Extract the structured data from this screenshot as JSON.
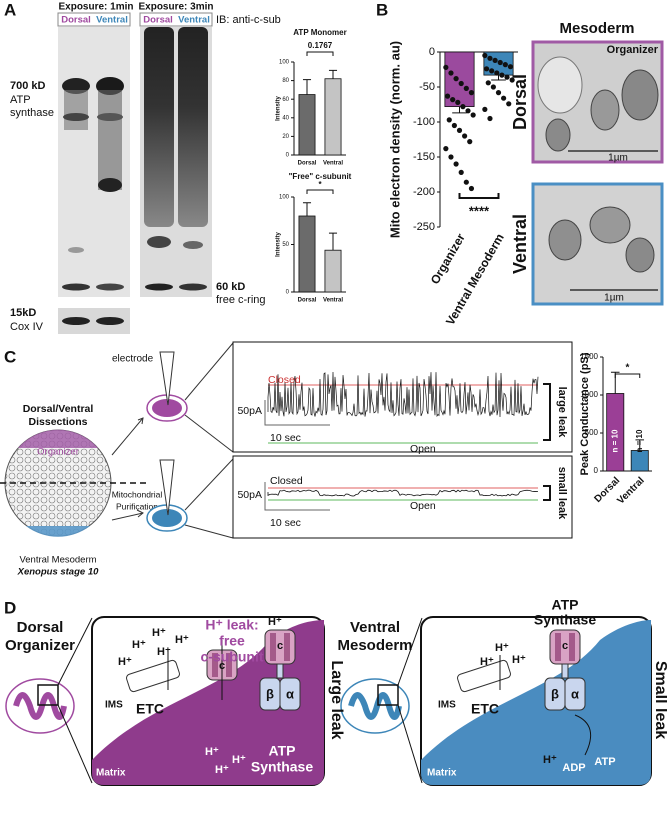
{
  "figure": {
    "panel_a": {
      "letter": "A",
      "exposure_1": "Exposure: 1min",
      "exposure_3": "Exposure: 3min",
      "lane_dorsal": "Dorsal",
      "lane_ventral": "Ventral",
      "ib": "IB: anti-c-sub",
      "mw_700": "700 kD",
      "atp_1": "ATP",
      "atp_2": "synthase",
      "mw_60": "60 kD",
      "free_ring": "free c-ring",
      "mw_15": "15kD",
      "cox": "Cox IV"
    },
    "panel_b": {
      "letter": "B",
      "mesoderm": "Mesoderm",
      "organizer": "Organizer",
      "dorsal": "Dorsal",
      "ventral": "Ventral",
      "scale": "1µm"
    },
    "panel_c": {
      "letter": "C",
      "dissections_1": "Dorsal/Ventral",
      "dissections_2": "Dissections",
      "organizer": "Organizer",
      "ventral": "Ventral Mesoderm",
      "stage": "Xenopus stage 10",
      "purification_1": "Mitochondrial",
      "purification_2": "Purification",
      "electrode": "electrode",
      "closed": "Closed",
      "open": "Open",
      "large": "large leak",
      "small": "small leak",
      "current": "50pA",
      "time": "10 sec"
    },
    "panel_d": {
      "letter": "D",
      "dorsal_1": "Dorsal",
      "dorsal_2": "Organizer",
      "leak_1": "H⁺ leak:",
      "leak_2": "free",
      "leak_3": "c-subunit",
      "large": "Large leak",
      "ims": "IMS",
      "matrix": "Matrix",
      "etc": "ETC",
      "synthase_1": "ATP",
      "synthase_2": "Synthase",
      "c": "c",
      "beta": "β",
      "alpha": "α",
      "ventral_1": "Ventral",
      "ventral_2": "Mesoderm",
      "small": "Small leak",
      "adp": "ADP",
      "atp": "ATP",
      "proton": "H⁺"
    }
  },
  "chart_data": [
    {
      "type": "bar",
      "title": "ATP Monomer",
      "ylabel": "Intensity",
      "categories": [
        "Dorsal",
        "Ventral"
      ],
      "values": [
        65,
        82
      ],
      "errors": [
        16,
        9
      ],
      "colors": [
        "#6b6b6b",
        "#c4c4c4"
      ],
      "ylim": [
        0,
        100
      ],
      "yticks": [
        0,
        20,
        40,
        60,
        80,
        100
      ],
      "annotation": "0.1767"
    },
    {
      "type": "bar",
      "title": "\"Free\" c-subunit",
      "ylabel": "Intensity",
      "categories": [
        "Dorsal",
        "Ventral"
      ],
      "values": [
        80,
        44
      ],
      "errors": [
        14,
        18
      ],
      "colors": [
        "#6b6b6b",
        "#c4c4c4"
      ],
      "ylim": [
        0,
        100
      ],
      "yticks": [
        0,
        50,
        100
      ],
      "annotation": "*"
    },
    {
      "type": "bar",
      "ylabel": "Mito electron density (norm. au)",
      "categories": [
        "Organizer",
        "Ventral Mesoderm"
      ],
      "values": [
        -78,
        -33
      ],
      "errors": [
        9,
        7
      ],
      "colors": [
        "#9b4a9e",
        "#3d86b8"
      ],
      "ylim": [
        -250,
        0
      ],
      "yticks": [
        0,
        -50,
        -100,
        -150,
        -200,
        -250
      ],
      "annotation": "****",
      "points": [
        [
          -22,
          -30,
          -38,
          -45,
          -52,
          -58,
          -63,
          -68,
          -72,
          -78,
          -84,
          -90,
          -97,
          -105,
          -112,
          -120,
          -128,
          -138,
          -150,
          -160,
          -172,
          -186,
          -195
        ],
        [
          -5,
          -9,
          -12,
          -15,
          -18,
          -21,
          -24,
          -27,
          -30,
          -33,
          -36,
          -40,
          -44,
          -50,
          -58,
          -66,
          -74,
          -82,
          -95
        ]
      ]
    },
    {
      "type": "bar",
      "ylabel": "Peak Conductance (pS)",
      "categories": [
        "Dorsal",
        "Ventral"
      ],
      "values": [
        1020,
        270
      ],
      "errors": [
        280,
        140
      ],
      "colors": [
        "#9b3f96",
        "#3d86b8"
      ],
      "ylim": [
        0,
        1500
      ],
      "yticks": [
        0,
        500,
        1000,
        1500
      ],
      "annotation": "*",
      "bar_labels": [
        "n = 10",
        "n = 10"
      ]
    }
  ]
}
